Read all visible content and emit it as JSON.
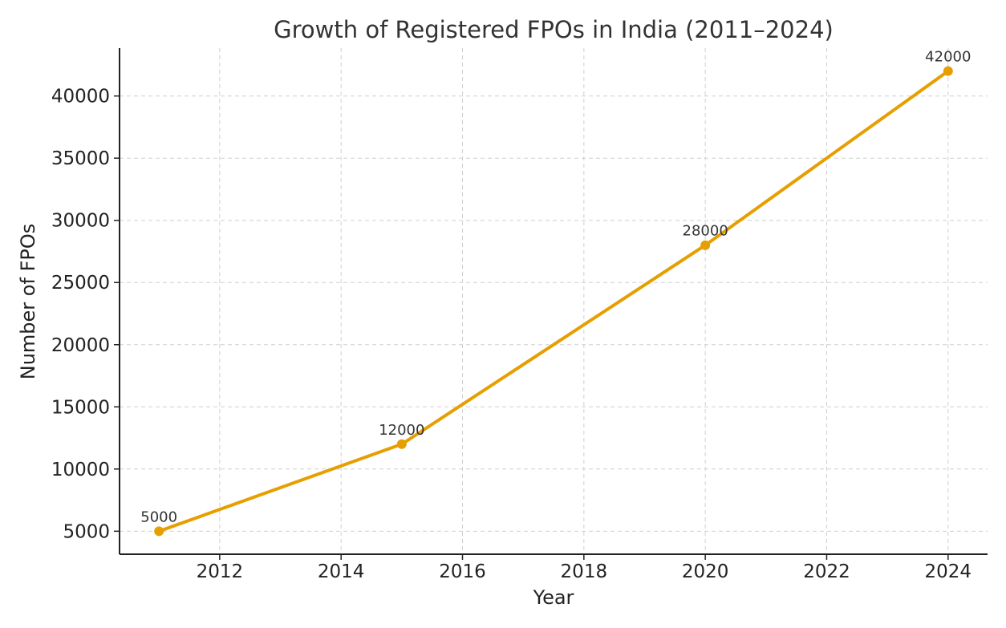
{
  "chart_data": {
    "type": "line",
    "title": "Growth of Registered FPOs in India (2011–2024)",
    "xlabel": "Year",
    "ylabel": "Number of FPOs",
    "x": [
      2011,
      2015,
      2020,
      2024
    ],
    "series": [
      {
        "values": [
          5000,
          12000,
          28000,
          42000
        ],
        "color": "#e69f00"
      }
    ],
    "data_labels": [
      "5000",
      "12000",
      "28000",
      "42000"
    ],
    "xlim": [
      2010.35,
      2024.65
    ],
    "ylim": [
      3150,
      43850
    ],
    "xticks": [
      2012,
      2014,
      2016,
      2018,
      2020,
      2022,
      2024
    ],
    "yticks": [
      5000,
      10000,
      15000,
      20000,
      25000,
      30000,
      35000,
      40000
    ],
    "grid": true,
    "marker": "circle"
  }
}
